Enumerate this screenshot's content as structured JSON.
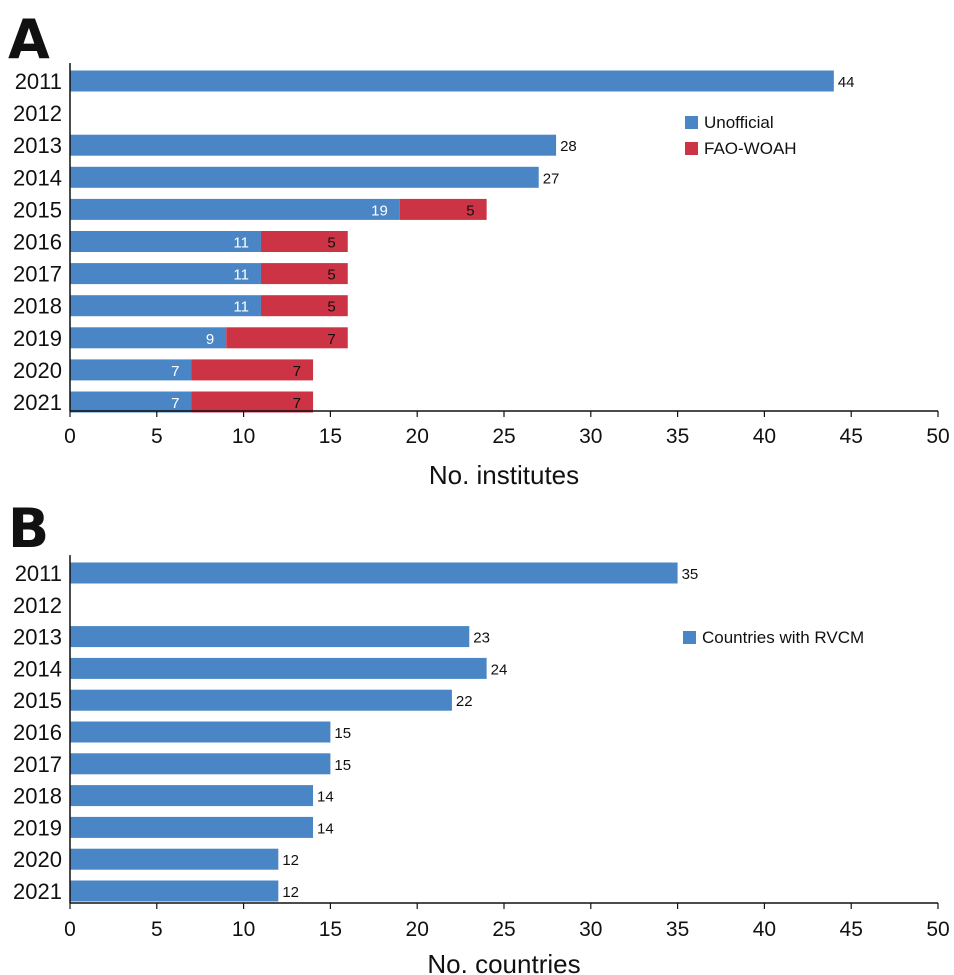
{
  "chart_data": [
    {
      "panel": "A",
      "type": "bar",
      "orientation": "horizontal",
      "stacked": true,
      "categories": [
        "2011",
        "2012",
        "2013",
        "2014",
        "2015",
        "2016",
        "2017",
        "2018",
        "2019",
        "2020",
        "2021"
      ],
      "series": [
        {
          "name": "Unofficial",
          "values": [
            44,
            null,
            28,
            27,
            19,
            11,
            11,
            11,
            9,
            7,
            7
          ],
          "color": "#4a86c5"
        },
        {
          "name": "FAO-WOAH",
          "values": [
            null,
            null,
            null,
            null,
            5,
            5,
            5,
            5,
            7,
            7,
            7
          ],
          "color": "#cc3345"
        }
      ],
      "xlabel": "No. institutes",
      "xlim": [
        0,
        50
      ],
      "xticks": [
        0,
        5,
        10,
        15,
        20,
        25,
        30,
        35,
        40,
        45,
        50
      ],
      "legend_position": "right-upper",
      "grid": false
    },
    {
      "panel": "B",
      "type": "bar",
      "orientation": "horizontal",
      "stacked": false,
      "categories": [
        "2011",
        "2012",
        "2013",
        "2014",
        "2015",
        "2016",
        "2017",
        "2018",
        "2019",
        "2020",
        "2021"
      ],
      "series": [
        {
          "name": "Countries with RVCM",
          "values": [
            35,
            null,
            23,
            24,
            22,
            15,
            15,
            14,
            14,
            12,
            12
          ],
          "color": "#4a86c5"
        }
      ],
      "xlabel": "No. countries",
      "xlim": [
        0,
        50
      ],
      "xticks": [
        0,
        5,
        10,
        15,
        20,
        25,
        30,
        35,
        40,
        45,
        50
      ],
      "legend_position": "right-upper",
      "grid": false
    }
  ]
}
